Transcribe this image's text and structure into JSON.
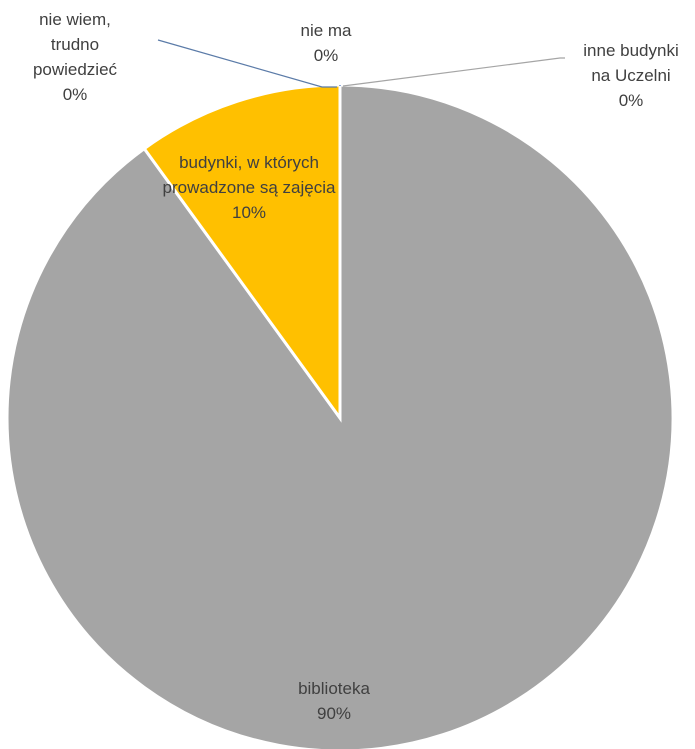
{
  "chart_data": {
    "type": "pie",
    "title": "",
    "legend": "none",
    "slices": [
      {
        "label": "biblioteka",
        "value": 90,
        "value_label": "90%",
        "color": "#a5a5a5"
      },
      {
        "label": "inne budynki na Uczelni",
        "value": 0,
        "value_label": "0%",
        "color": "#5b9bd5"
      },
      {
        "label": "nie ma",
        "value": 0,
        "value_label": "0%",
        "color": "#4472c4"
      },
      {
        "label": "nie wiem, trudno powiedzieć",
        "value": 0,
        "value_label": "0%",
        "color": "#ed7d31"
      },
      {
        "label": "budynki, w których prowadzone są zajęcia",
        "value": 10,
        "value_label": "10%",
        "color": "#ffc000"
      }
    ],
    "data_labels": [
      {
        "lines": [
          "biblioteka"
        ],
        "value": "90%"
      },
      {
        "lines": [
          "inne budynki",
          "na Uczelni"
        ],
        "value": "0%"
      },
      {
        "lines": [
          "nie ma"
        ],
        "value": "0%"
      },
      {
        "lines": [
          "nie wiem,",
          "trudno",
          "powiedzieć"
        ],
        "value": "0%"
      },
      {
        "lines": [
          "budynki, w których",
          "prowadzone są zajęcia"
        ],
        "value": "10%"
      }
    ],
    "leader_line_colors": [
      "#a5a5a5",
      "#4472c4",
      "#5b7ba8"
    ]
  }
}
